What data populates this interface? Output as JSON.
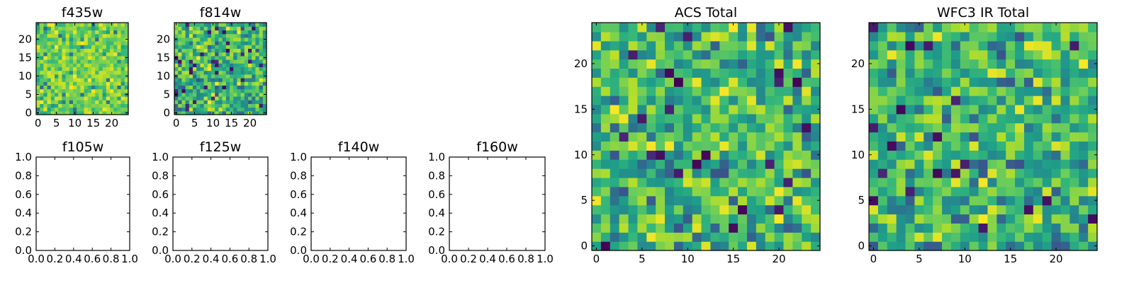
{
  "chart_data": [
    {
      "type": "heatmap",
      "title": "f435w",
      "colormap": "viridis",
      "grid_size": 25,
      "xlim": [
        0,
        24
      ],
      "ylim": [
        0,
        24
      ],
      "xticks": [
        "0",
        "5",
        "10",
        "15",
        "20"
      ],
      "yticks": [
        "0",
        "5",
        "10",
        "15",
        "20"
      ],
      "seed": 11,
      "value_range": [
        0.35,
        1.0
      ]
    },
    {
      "type": "heatmap",
      "title": "f814w",
      "colormap": "viridis",
      "grid_size": 25,
      "xlim": [
        0,
        24
      ],
      "ylim": [
        0,
        24
      ],
      "xticks": [
        "0",
        "5",
        "10",
        "15",
        "20"
      ],
      "yticks": [
        "0",
        "5",
        "10",
        "15",
        "20"
      ],
      "seed": 23,
      "value_range": [
        0.0,
        1.0
      ]
    },
    {
      "type": "line",
      "title": "f105w",
      "series": [],
      "xlim": [
        0.0,
        1.0
      ],
      "ylim": [
        0.0,
        1.0
      ],
      "xticks": [
        "0.0",
        "0.2",
        "0.4",
        "0.6",
        "0.8",
        "1.0"
      ],
      "yticks": [
        "0.0",
        "0.2",
        "0.4",
        "0.6",
        "0.8",
        "1.0"
      ]
    },
    {
      "type": "line",
      "title": "f125w",
      "series": [],
      "xlim": [
        0.0,
        1.0
      ],
      "ylim": [
        0.0,
        1.0
      ],
      "xticks": [
        "0.0",
        "0.2",
        "0.4",
        "0.6",
        "0.8",
        "1.0"
      ],
      "yticks": [
        "0.0",
        "0.2",
        "0.4",
        "0.6",
        "0.8",
        "1.0"
      ]
    },
    {
      "type": "line",
      "title": "f140w",
      "series": [],
      "xlim": [
        0.0,
        1.0
      ],
      "ylim": [
        0.0,
        1.0
      ],
      "xticks": [
        "0.0",
        "0.2",
        "0.4",
        "0.6",
        "0.8",
        "1.0"
      ],
      "yticks": [
        "0.0",
        "0.2",
        "0.4",
        "0.6",
        "0.8",
        "1.0"
      ]
    },
    {
      "type": "line",
      "title": "f160w",
      "series": [],
      "xlim": [
        0.0,
        1.0
      ],
      "ylim": [
        0.0,
        1.0
      ],
      "xticks": [
        "0.0",
        "0.2",
        "0.4",
        "0.6",
        "0.8",
        "1.0"
      ],
      "yticks": [
        "0.0",
        "0.2",
        "0.4",
        "0.6",
        "0.8",
        "1.0"
      ]
    },
    {
      "type": "heatmap",
      "title": "ACS Total",
      "colormap": "viridis",
      "grid_size": 25,
      "xlim": [
        0,
        24
      ],
      "ylim": [
        0,
        24
      ],
      "xticks": [
        "0",
        "5",
        "10",
        "15",
        "20"
      ],
      "yticks": [
        "0",
        "5",
        "10",
        "15",
        "20"
      ],
      "seed": 37,
      "value_range": [
        0.0,
        1.0
      ]
    },
    {
      "type": "heatmap",
      "title": "WFC3 IR Total",
      "colormap": "viridis",
      "grid_size": 25,
      "xlim": [
        0,
        24
      ],
      "ylim": [
        0,
        24
      ],
      "xticks": [
        "0",
        "5",
        "10",
        "15",
        "20"
      ],
      "yticks": [
        "0",
        "5",
        "10",
        "15",
        "20"
      ],
      "seed": 53,
      "value_range": [
        0.0,
        1.0
      ]
    }
  ]
}
